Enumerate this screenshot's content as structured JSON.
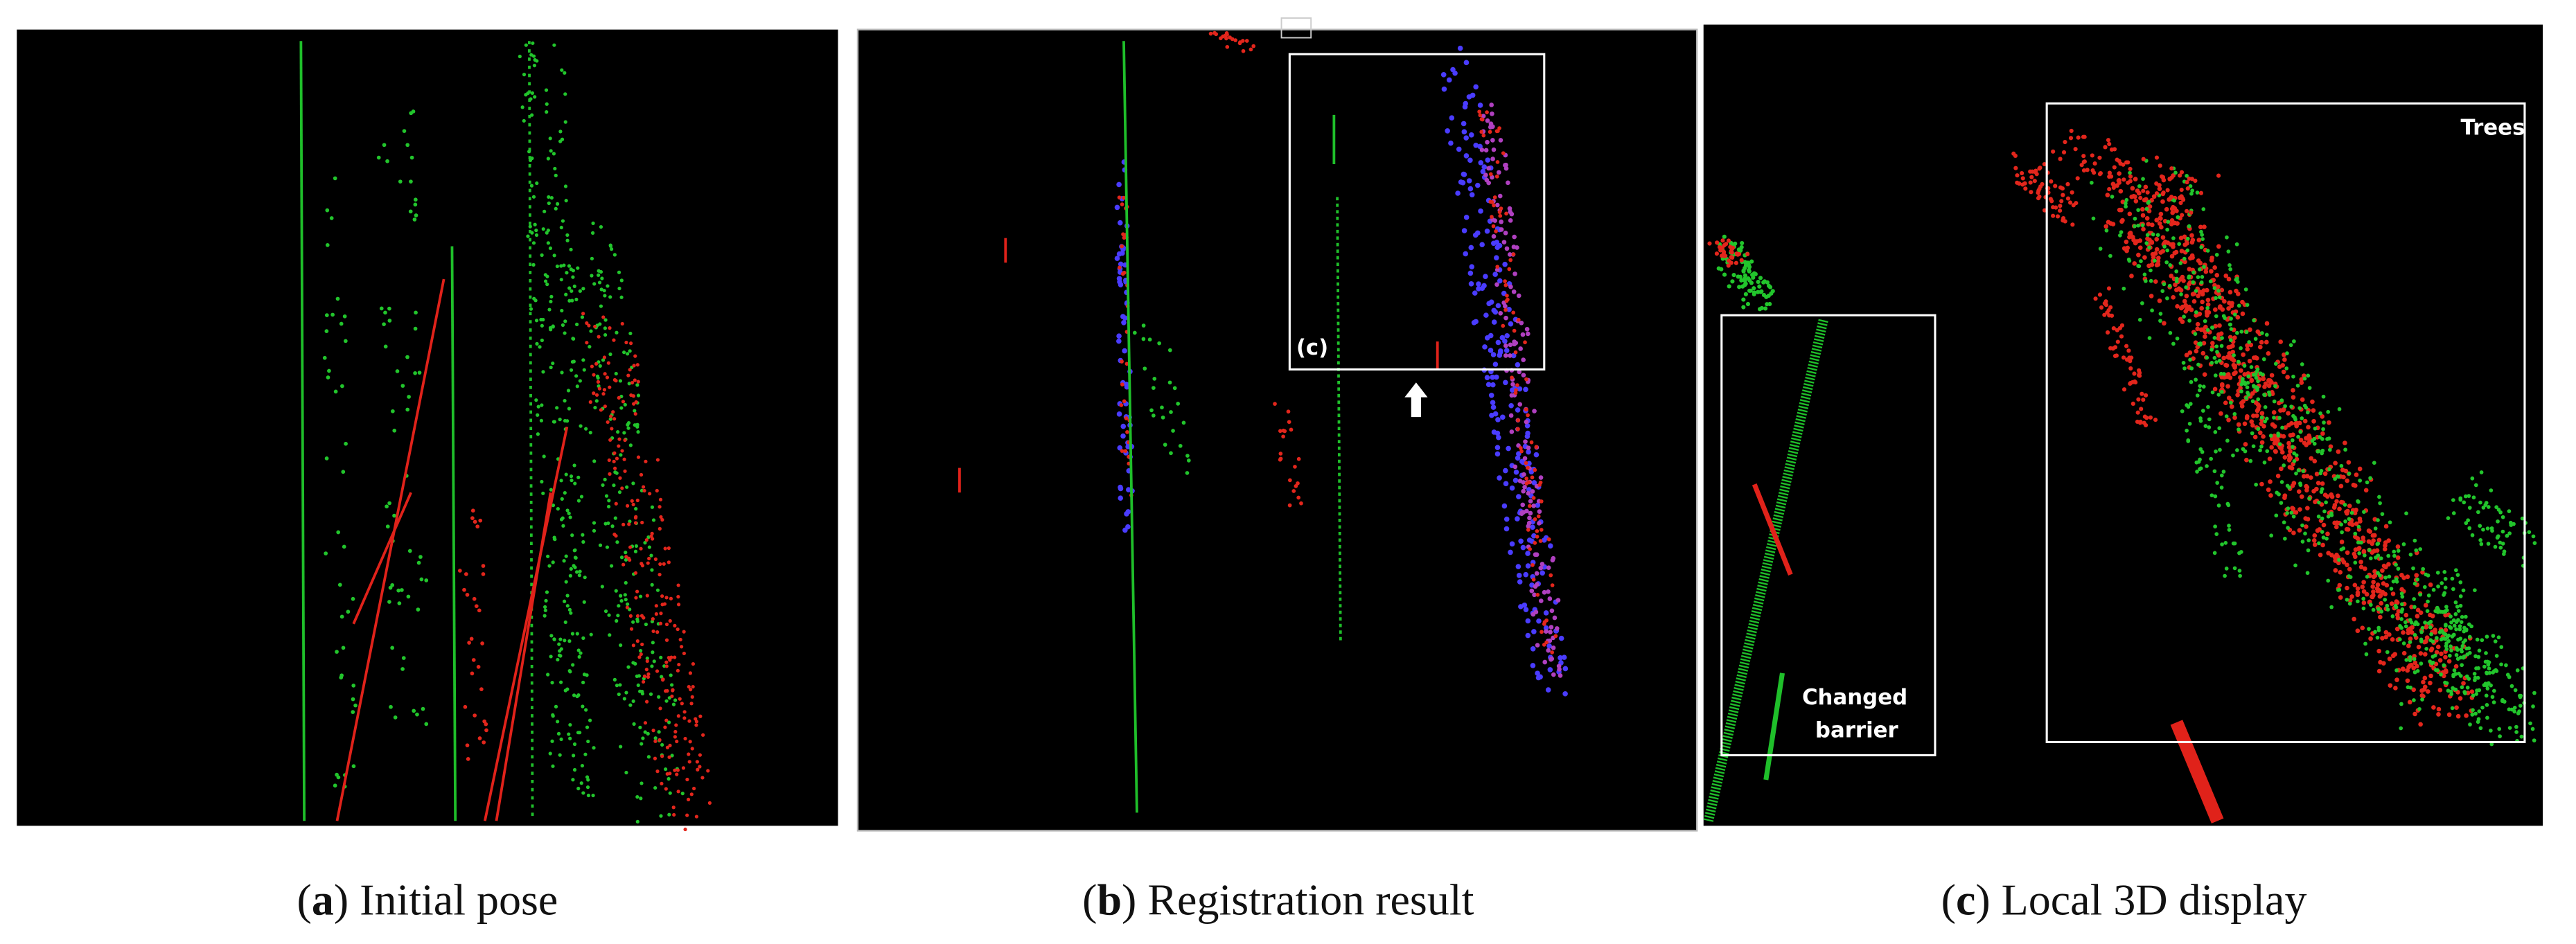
{
  "panels": [
    {
      "caption_parts": [
        "(",
        "a",
        ") Initial pose"
      ]
    },
    {
      "caption_parts": [
        "(",
        "b",
        ") Registration result"
      ],
      "annotations": [
        "(c)"
      ]
    },
    {
      "caption_parts": [
        "(",
        "c",
        ") Local 3D display"
      ],
      "annotations": [
        "Trees",
        "Changed",
        "barrier"
      ]
    }
  ]
}
